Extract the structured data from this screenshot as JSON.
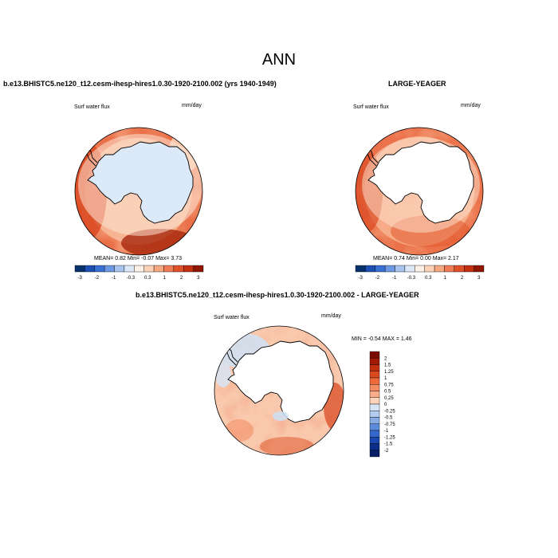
{
  "figure": {
    "title": "ANN"
  },
  "panels": [
    {
      "title": "b.e13.BHISTC5.ne120_t12.cesm-ihesp-hires1.0.30-1920-2100.002 (yrs 1940-1949)",
      "variable": "Surf water flux",
      "units": "mm/day",
      "stats": {
        "mean_label": "MEAN=",
        "mean": "0.82",
        "min_label": "Min=",
        "min": "-0.07",
        "max_label": "Max=",
        "max": "3.73"
      }
    },
    {
      "title": "LARGE-YEAGER",
      "variable": "Surf water flux",
      "units": "mm/day",
      "stats": {
        "mean_label": "MEAN=",
        "mean": "0.74",
        "min_label": "Min=",
        "min": "0.00",
        "max_label": "Max=",
        "max": "2.17"
      }
    },
    {
      "title": "b.e13.BHISTC5.ne120_t12.cesm-ihesp-hires1.0.30-1920-2100.002 - LARGE-YEAGER",
      "variable": "Surf water flux",
      "units": "mm/day",
      "stats": {
        "min_label": "MIN =",
        "min": "-0.54",
        "max_label": "MAX =",
        "max": "1.46"
      }
    }
  ],
  "colorbar_abs": {
    "labels": [
      "-3",
      "-2",
      "-1",
      "-0.3",
      "0.3",
      "1",
      "2",
      "3"
    ],
    "colors": [
      "#08306b",
      "#1c4fb0",
      "#3a6fd4",
      "#6f98e2",
      "#a9c4ee",
      "#dce8f7",
      "#fdf0e6",
      "#fbd2b6",
      "#f6a882",
      "#ef7c54",
      "#de5128",
      "#c2300f",
      "#8f1503"
    ]
  },
  "colorbar_diff": {
    "labels": [
      "2",
      "1.5",
      "1.25",
      "1",
      "0.75",
      "0.5",
      "0.25",
      "0",
      "-0.25",
      "-0.5",
      "-0.75",
      "-1",
      "-1.25",
      "-1.5",
      "-2"
    ],
    "colors": [
      "#7a0c02",
      "#a31a06",
      "#c2300f",
      "#dd4a20",
      "#ee6a3c",
      "#f58c62",
      "#f9ad89",
      "#fcd2b8",
      "#d6e6f7",
      "#b2cdf0",
      "#88ade6",
      "#5b8bdb",
      "#3568cc",
      "#1a48b0",
      "#0a2f8a",
      "#061f66"
    ]
  }
}
